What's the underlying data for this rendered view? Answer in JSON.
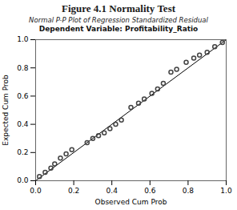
{
  "chart_data": {
    "type": "scatter",
    "title": "Figure 4.1 Normality Test",
    "subtitle": "Normal P-P Plot of Regression Standardized Residual",
    "annotations": [
      "Dependent Variable: Profitability_Ratio"
    ],
    "x_label": "Observed Cum Prob",
    "y_label": "Expected Cum Prob",
    "x": [
      0.02,
      0.05,
      0.08,
      0.1,
      0.13,
      0.16,
      0.19,
      0.27,
      0.3,
      0.33,
      0.36,
      0.39,
      0.42,
      0.45,
      0.5,
      0.54,
      0.57,
      0.61,
      0.64,
      0.67,
      0.71,
      0.74,
      0.79,
      0.83,
      0.86,
      0.9,
      0.94,
      0.98
    ],
    "y": [
      0.03,
      0.06,
      0.09,
      0.12,
      0.16,
      0.19,
      0.22,
      0.27,
      0.3,
      0.32,
      0.34,
      0.37,
      0.4,
      0.43,
      0.52,
      0.55,
      0.58,
      0.62,
      0.65,
      0.69,
      0.77,
      0.79,
      0.84,
      0.87,
      0.89,
      0.91,
      0.95,
      0.98
    ],
    "color": "#444444",
    "xlim": [
      0,
      1
    ],
    "ylim": [
      0,
      1
    ],
    "xticks": [
      {
        "value": 0,
        "label": "0.0"
      },
      0.2,
      0.4,
      0.6,
      0.8,
      {
        "value": 1,
        "label": "1.0"
      }
    ],
    "yticks": [
      {
        "value": 0,
        "label": "0.0"
      },
      0.2,
      0.4,
      0.6,
      0.8,
      {
        "value": 1,
        "label": "1.0"
      }
    ],
    "grid": false
  }
}
